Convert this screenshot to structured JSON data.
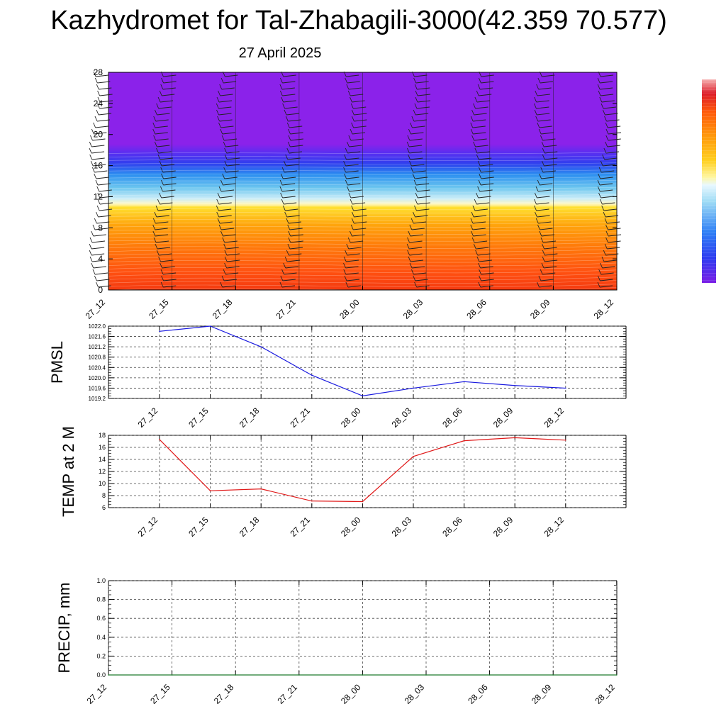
{
  "title": "Kazhydromet for Tal-Zhabagili-3000(42.359 70.577)",
  "subtitle": "27 April 2025",
  "colors": {
    "pmsl_line": "#1a1adf",
    "temp_line": "#e01818",
    "precip_line": "#1f7a2c",
    "wind_barb": "#222222"
  },
  "chart_data": [
    {
      "type": "heatmap",
      "x": [
        "27_12",
        "27_15",
        "27_18",
        "27_21",
        "28_00",
        "28_03",
        "28_06",
        "28_09",
        "28_12"
      ],
      "yticks": [
        "0",
        "4",
        "8",
        "12",
        "16",
        "20",
        "24",
        "28"
      ],
      "ylim": [
        0,
        28
      ],
      "colorbar": [
        "#8b1ee6",
        "#5a2ef0",
        "#2f3cf0",
        "#2f6ef5",
        "#3fa8f0",
        "#7fd0f0",
        "#c8ecf8",
        "#fff9b0",
        "#ffe23a",
        "#ffc21a",
        "#ffa20c",
        "#ff7f0a",
        "#ff5a0a",
        "#f0321e",
        "#dd1e2a",
        "#f5a0a0"
      ]
    },
    {
      "type": "line",
      "ylabel": "PMSL",
      "x": [
        "27_12",
        "27_15",
        "27_18",
        "27_21",
        "28_00",
        "28_03",
        "28_06",
        "28_09",
        "28_12"
      ],
      "values": [
        1021.8,
        1022.0,
        1021.2,
        1020.1,
        1019.3,
        1019.6,
        1019.85,
        1019.7,
        1019.6
      ],
      "yticks": [
        "1019.2",
        "1019.6",
        "1020.0",
        "1020.4",
        "1020.8",
        "1021.2",
        "1021.6",
        "1022.0"
      ],
      "ylim": [
        1019.2,
        1022.0
      ]
    },
    {
      "type": "line",
      "ylabel": "TEMP at 2 M",
      "x": [
        "27_12",
        "27_15",
        "27_18",
        "27_21",
        "28_00",
        "28_03",
        "28_06",
        "28_09",
        "28_12"
      ],
      "values": [
        17.3,
        8.8,
        9.1,
        7.1,
        7.0,
        14.5,
        17.1,
        17.6,
        17.2
      ],
      "yticks": [
        "6",
        "8",
        "10",
        "12",
        "14",
        "16",
        "18"
      ],
      "ylim": [
        6,
        18
      ]
    },
    {
      "type": "line",
      "ylabel": "PRECIP, mm",
      "x": [
        "27_12",
        "27_15",
        "27_18",
        "27_21",
        "28_00",
        "28_03",
        "28_06",
        "28_09",
        "28_12"
      ],
      "values": [
        0,
        0,
        0,
        0,
        0,
        0,
        0,
        0,
        0
      ],
      "yticks": [
        "0.0",
        "0.2",
        "0.4",
        "0.6",
        "0.8",
        "1.0"
      ],
      "ylim": [
        0,
        1
      ]
    }
  ]
}
